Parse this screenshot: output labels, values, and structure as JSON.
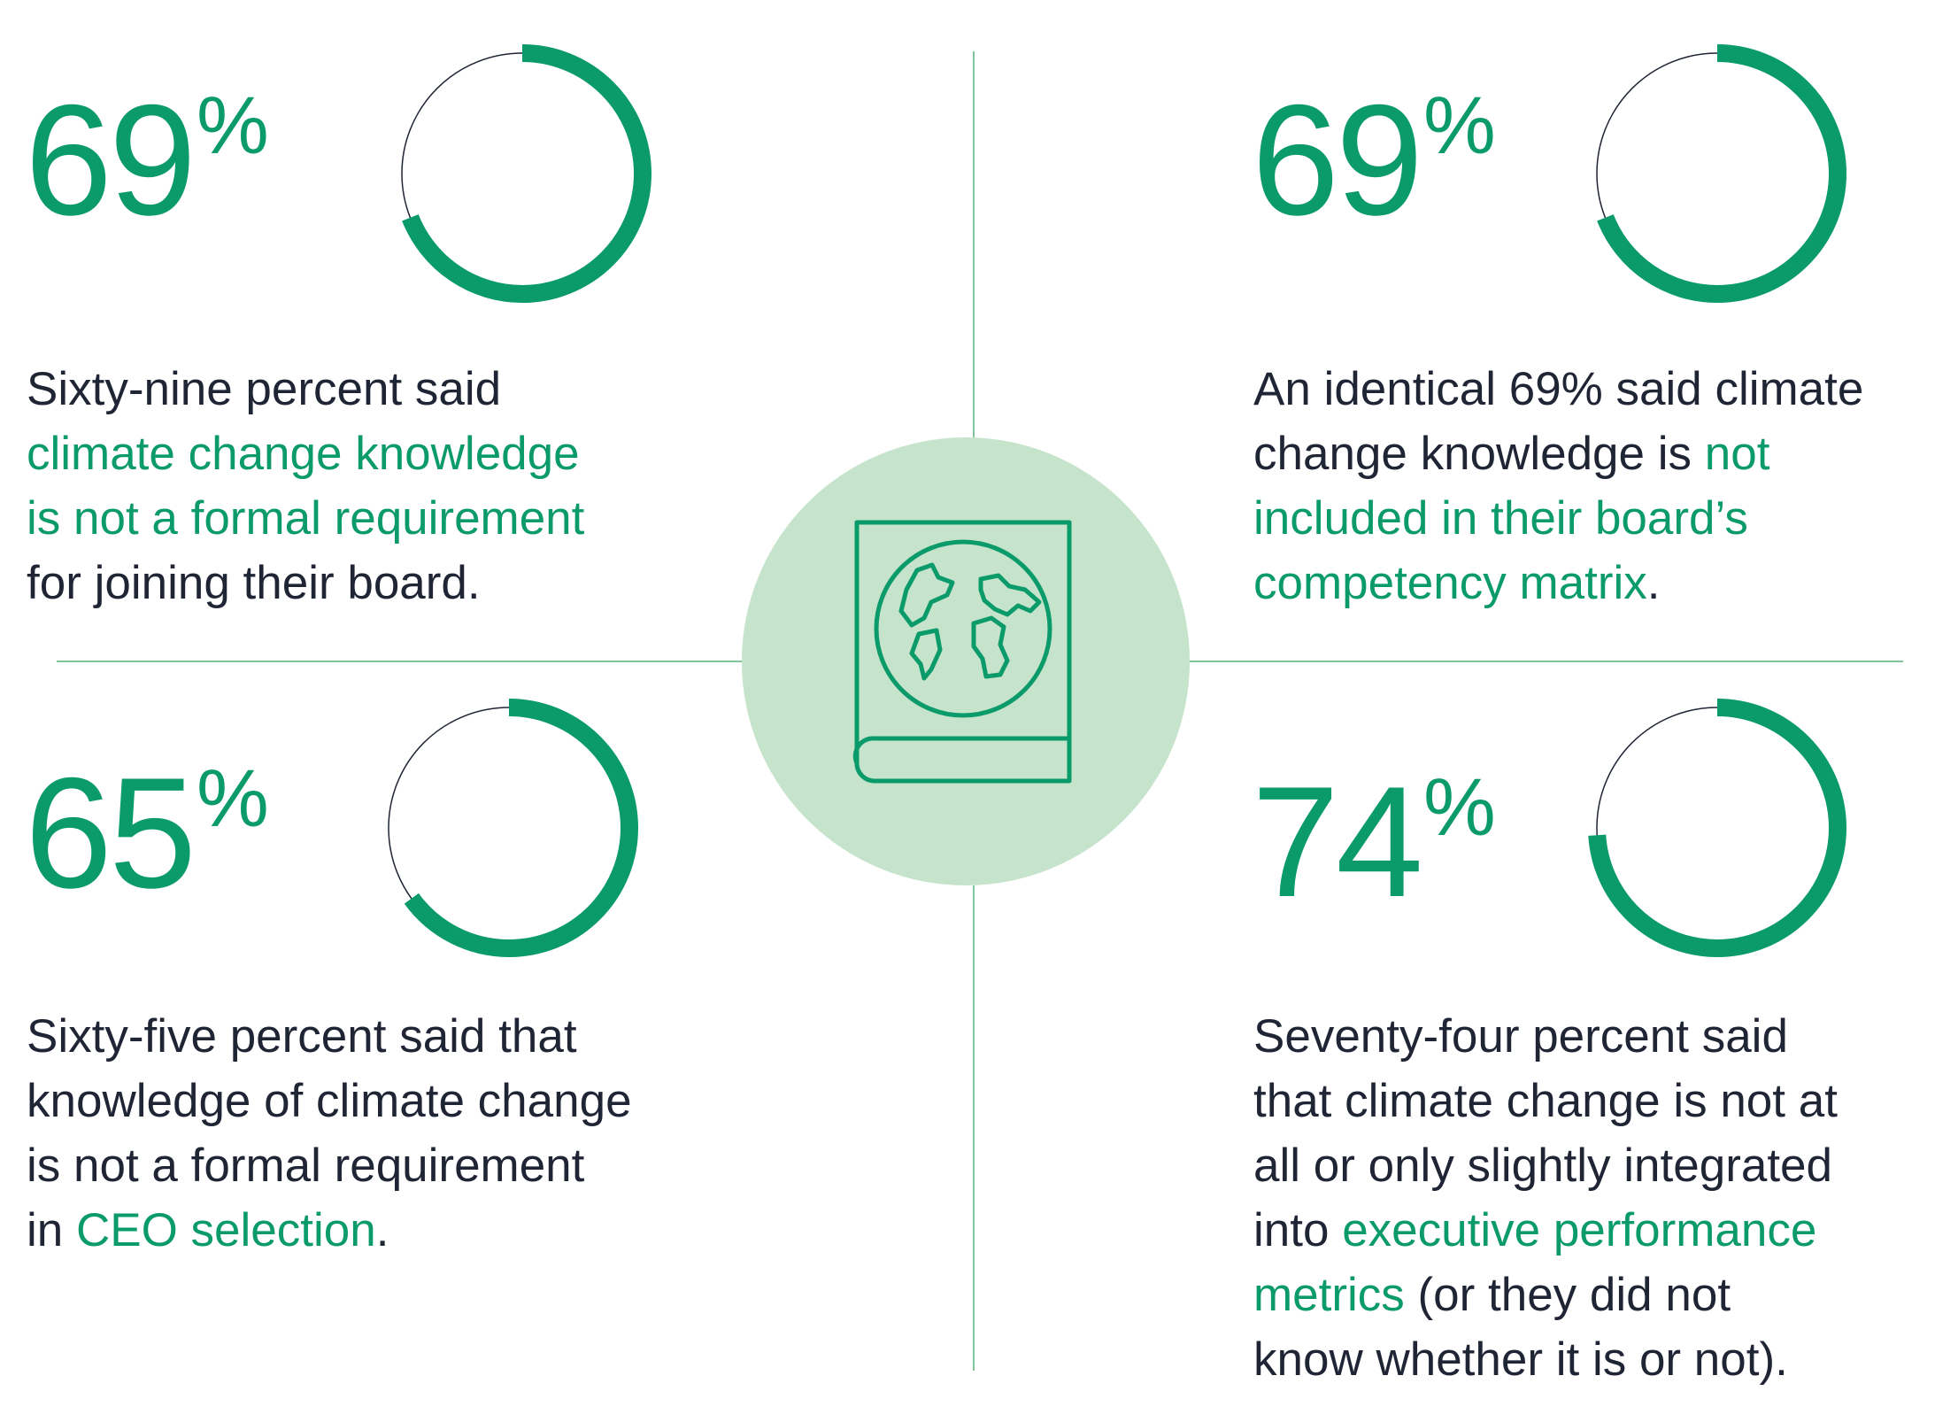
{
  "colors": {
    "accent": "#0b9b6a",
    "badge_bg": "#c6e3cb",
    "divider": "#7fc49a",
    "text": "#1f2535",
    "ring_track": "#1f2535"
  },
  "center_icon": "globe-book-icon",
  "stats": [
    {
      "id": "top-left",
      "number": "69",
      "percent_sign": "%",
      "value_fraction": 0.69,
      "lines": [
        [
          {
            "t": "Sixty-nine percent said",
            "hl": false
          }
        ],
        [
          {
            "t": "climate change knowledge",
            "hl": true
          }
        ],
        [
          {
            "t": "is not a formal requirement",
            "hl": true
          }
        ],
        [
          {
            "t": "for joining their board.",
            "hl": false
          }
        ]
      ]
    },
    {
      "id": "top-right",
      "number": "69",
      "percent_sign": "%",
      "value_fraction": 0.69,
      "lines": [
        [
          {
            "t": "An identical 69% said climate",
            "hl": false
          }
        ],
        [
          {
            "t": "change knowledge is ",
            "hl": false
          },
          {
            "t": "not",
            "hl": true
          }
        ],
        [
          {
            "t": "included in their board’s",
            "hl": true
          }
        ],
        [
          {
            "t": "competency matrix",
            "hl": true
          },
          {
            "t": ".",
            "hl": false
          }
        ]
      ]
    },
    {
      "id": "bottom-left",
      "number": "65",
      "percent_sign": "%",
      "value_fraction": 0.65,
      "lines": [
        [
          {
            "t": "Sixty-five percent said that",
            "hl": false
          }
        ],
        [
          {
            "t": "knowledge of climate change",
            "hl": false
          }
        ],
        [
          {
            "t": "is not a formal requirement",
            "hl": false
          }
        ],
        [
          {
            "t": "in ",
            "hl": false
          },
          {
            "t": "CEO selection",
            "hl": true
          },
          {
            "t": ".",
            "hl": false
          }
        ]
      ]
    },
    {
      "id": "bottom-right",
      "number": "74",
      "percent_sign": "%",
      "value_fraction": 0.74,
      "lines": [
        [
          {
            "t": "Seventy-four percent said",
            "hl": false
          }
        ],
        [
          {
            "t": "that climate change is not at",
            "hl": false
          }
        ],
        [
          {
            "t": "all or only slightly integrated",
            "hl": false
          }
        ],
        [
          {
            "t": "into ",
            "hl": false
          },
          {
            "t": "executive performance",
            "hl": true
          }
        ],
        [
          {
            "t": "metrics",
            "hl": true
          },
          {
            "t": " (or they did not",
            "hl": false
          }
        ],
        [
          {
            "t": "know whether it is or not).",
            "hl": false
          }
        ]
      ]
    }
  ]
}
